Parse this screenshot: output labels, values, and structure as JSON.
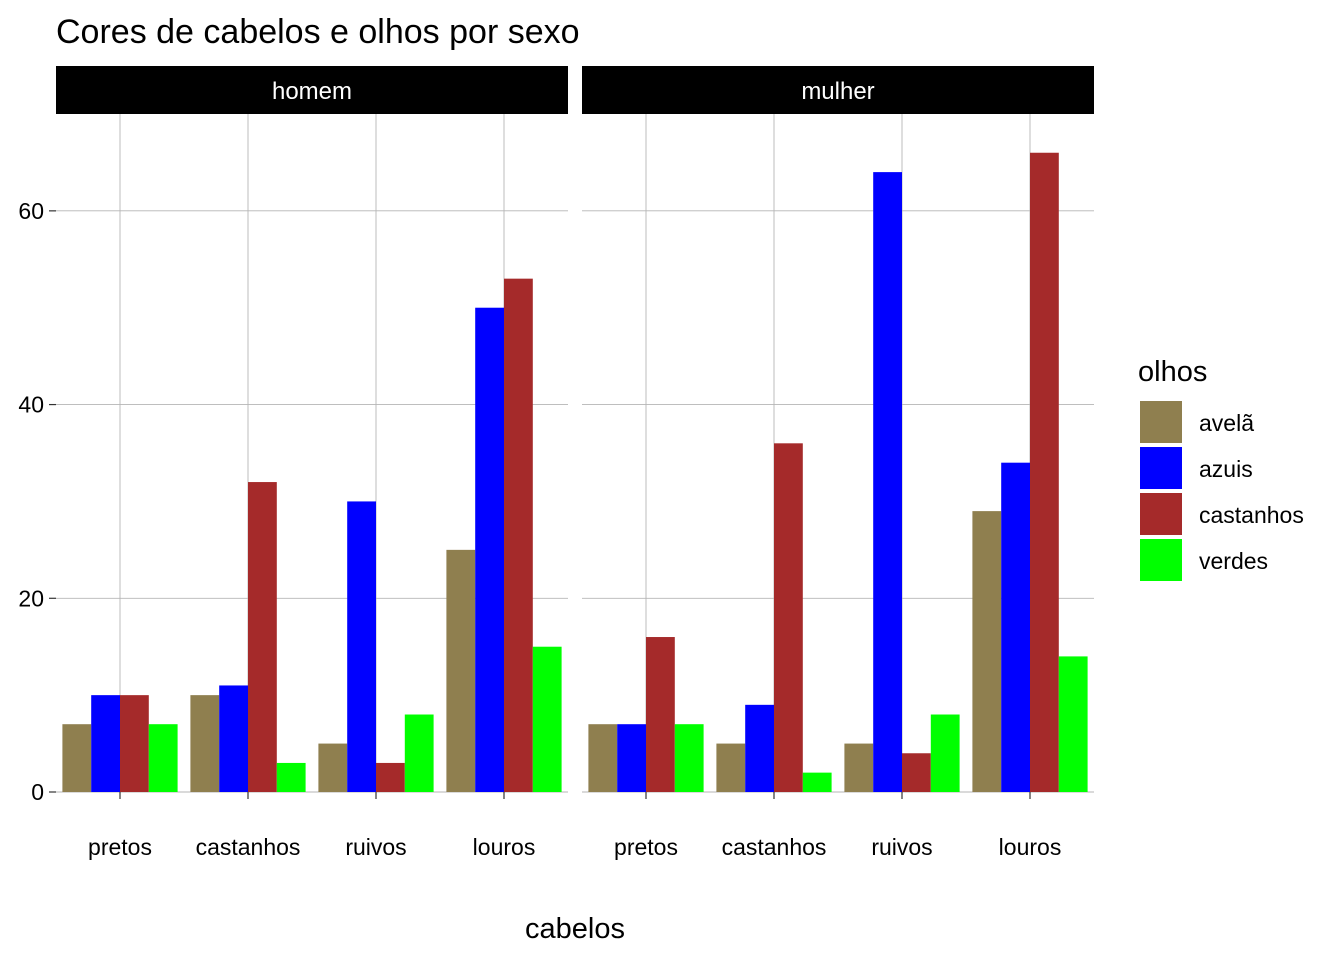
{
  "chart_data": {
    "type": "bar",
    "title": "Cores de cabelos e olhos por sexo",
    "xlabel": "cabelos",
    "ylabel": "",
    "ylim": [
      0,
      70
    ],
    "y_ticks": [
      0,
      20,
      40,
      60
    ],
    "categories": [
      "pretos",
      "castanhos",
      "ruivos",
      "louros"
    ],
    "legend": {
      "title": "olhos",
      "position": "right"
    },
    "series_colors": {
      "avelã": "#8f7f4f",
      "azuis": "#0000ff",
      "castanhos": "#a52a2a",
      "verdes": "#00ff00"
    },
    "panels": [
      {
        "label": "homem",
        "series": [
          {
            "name": "avelã",
            "values": [
              7,
              10,
              5,
              25
            ]
          },
          {
            "name": "azuis",
            "values": [
              10,
              11,
              30,
              50
            ]
          },
          {
            "name": "castanhos",
            "values": [
              10,
              32,
              3,
              53
            ]
          },
          {
            "name": "verdes",
            "values": [
              7,
              3,
              8,
              15
            ]
          }
        ]
      },
      {
        "label": "mulher",
        "series": [
          {
            "name": "avelã",
            "values": [
              7,
              5,
              5,
              29
            ]
          },
          {
            "name": "azuis",
            "values": [
              7,
              9,
              64,
              34
            ]
          },
          {
            "name": "castanhos",
            "values": [
              16,
              36,
              4,
              66
            ]
          },
          {
            "name": "verdes",
            "values": [
              7,
              2,
              8,
              14
            ]
          }
        ]
      }
    ],
    "grid": true,
    "strip_color": "#000000"
  }
}
